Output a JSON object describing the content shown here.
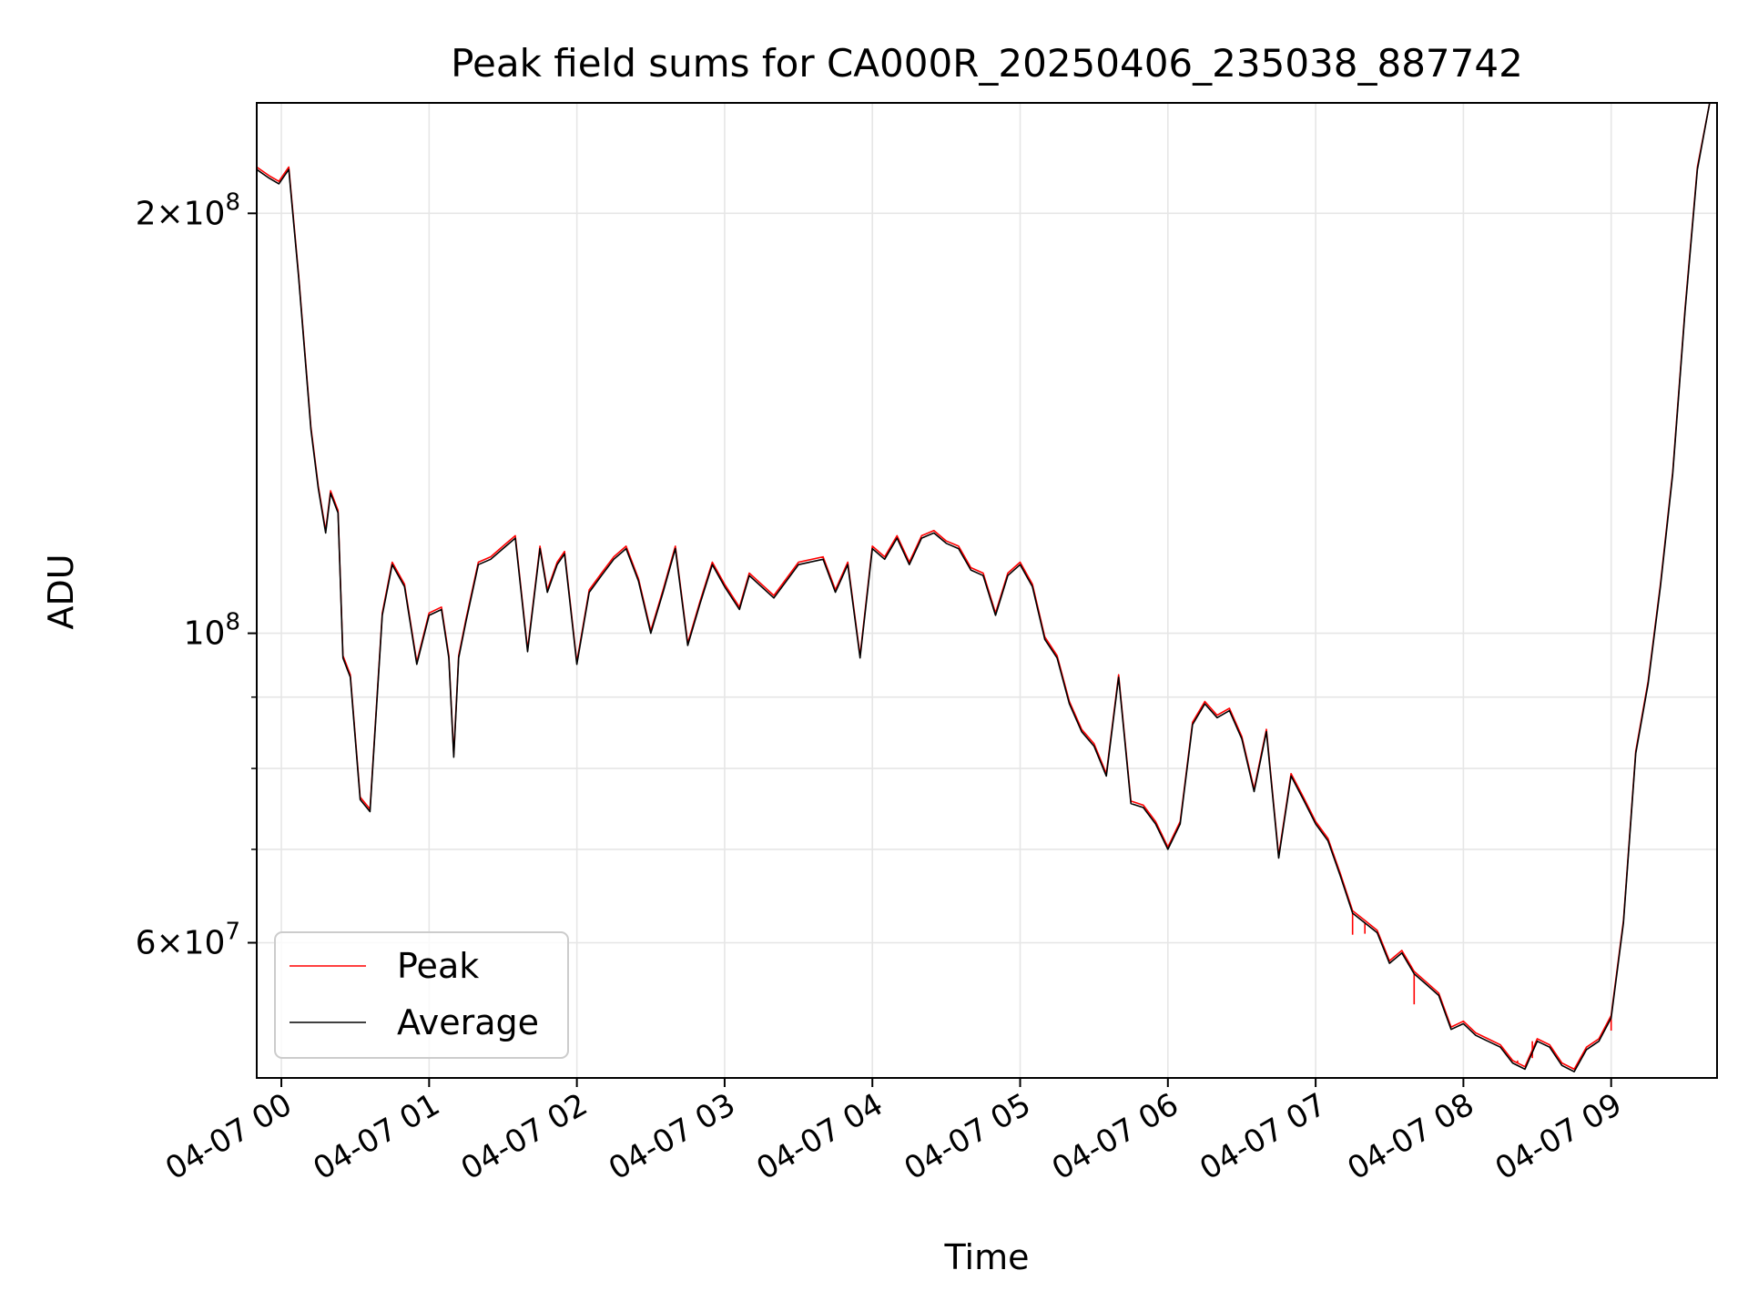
{
  "chart_data": {
    "type": "line",
    "title": "Peak field sums for CA000R_20250406_235038_887742",
    "xlabel": "Time",
    "ylabel": "ADU",
    "yscale": "log",
    "xlim": [
      "2025-04-06 23:50",
      "2025-04-07 09:43"
    ],
    "ylim": [
      48000000,
      240000000
    ],
    "grid": true,
    "legend_position": "lower-left",
    "x_ticks": [
      "04-07 00",
      "04-07 01",
      "04-07 02",
      "04-07 03",
      "04-07 04",
      "04-07 05",
      "04-07 06",
      "04-07 07",
      "04-07 08",
      "04-07 09"
    ],
    "y_tick_labels": [
      {
        "value": 200000000,
        "mantissa": "2",
        "exponent": "8"
      },
      {
        "value": 100000000,
        "mantissa": "",
        "exponent": "8"
      },
      {
        "value": 60000000,
        "mantissa": "6",
        "exponent": "7"
      }
    ],
    "y_minor_ticks": [
      70000000,
      80000000,
      90000000
    ],
    "series": [
      {
        "name": "Peak",
        "color": "#ff0000",
        "ref": "Average",
        "offset_factor": 1.004,
        "spikes": [
          {
            "x": "2025-04-07 07:15",
            "y": 60800000
          },
          {
            "x": "2025-04-07 07:20",
            "y": 60900000
          },
          {
            "x": "2025-04-07 07:40",
            "y": 54200000
          },
          {
            "x": "2025-04-07 08:22",
            "y": 49400000
          },
          {
            "x": "2025-04-07 08:28",
            "y": 49600000
          },
          {
            "x": "2025-04-07 09:00",
            "y": 51900000
          }
        ]
      },
      {
        "name": "Average",
        "color": "#000000",
        "x": [
          "2025-04-06 23:50",
          "2025-04-06 23:55",
          "2025-04-06 23:59",
          "2025-04-07 00:03",
          "2025-04-07 00:07",
          "2025-04-07 00:12",
          "2025-04-07 00:15",
          "2025-04-07 00:18",
          "2025-04-07 00:20",
          "2025-04-07 00:23",
          "2025-04-07 00:25",
          "2025-04-07 00:28",
          "2025-04-07 00:32",
          "2025-04-07 00:36",
          "2025-04-07 00:41",
          "2025-04-07 00:45",
          "2025-04-07 00:50",
          "2025-04-07 00:55",
          "2025-04-07 01:00",
          "2025-04-07 01:05",
          "2025-04-07 01:08",
          "2025-04-07 01:10",
          "2025-04-07 01:12",
          "2025-04-07 01:15",
          "2025-04-07 01:20",
          "2025-04-07 01:25",
          "2025-04-07 01:30",
          "2025-04-07 01:35",
          "2025-04-07 01:40",
          "2025-04-07 01:45",
          "2025-04-07 01:48",
          "2025-04-07 01:52",
          "2025-04-07 01:55",
          "2025-04-07 02:00",
          "2025-04-07 02:05",
          "2025-04-07 02:10",
          "2025-04-07 02:15",
          "2025-04-07 02:20",
          "2025-04-07 02:25",
          "2025-04-07 02:30",
          "2025-04-07 02:35",
          "2025-04-07 02:40",
          "2025-04-07 02:45",
          "2025-04-07 02:50",
          "2025-04-07 02:55",
          "2025-04-07 03:00",
          "2025-04-07 03:06",
          "2025-04-07 03:10",
          "2025-04-07 03:20",
          "2025-04-07 03:30",
          "2025-04-07 03:40",
          "2025-04-07 03:45",
          "2025-04-07 03:50",
          "2025-04-07 03:55",
          "2025-04-07 04:00",
          "2025-04-07 04:05",
          "2025-04-07 04:10",
          "2025-04-07 04:15",
          "2025-04-07 04:20",
          "2025-04-07 04:25",
          "2025-04-07 04:30",
          "2025-04-07 04:35",
          "2025-04-07 04:40",
          "2025-04-07 04:45",
          "2025-04-07 04:50",
          "2025-04-07 04:55",
          "2025-04-07 05:00",
          "2025-04-07 05:05",
          "2025-04-07 05:10",
          "2025-04-07 05:15",
          "2025-04-07 05:20",
          "2025-04-07 05:25",
          "2025-04-07 05:30",
          "2025-04-07 05:35",
          "2025-04-07 05:40",
          "2025-04-07 05:45",
          "2025-04-07 05:50",
          "2025-04-07 05:55",
          "2025-04-07 06:00",
          "2025-04-07 06:05",
          "2025-04-07 06:10",
          "2025-04-07 06:15",
          "2025-04-07 06:20",
          "2025-04-07 06:25",
          "2025-04-07 06:30",
          "2025-04-07 06:35",
          "2025-04-07 06:40",
          "2025-04-07 06:45",
          "2025-04-07 06:50",
          "2025-04-07 06:55",
          "2025-04-07 07:00",
          "2025-04-07 07:05",
          "2025-04-07 07:10",
          "2025-04-07 07:15",
          "2025-04-07 07:20",
          "2025-04-07 07:25",
          "2025-04-07 07:30",
          "2025-04-07 07:35",
          "2025-04-07 07:40",
          "2025-04-07 07:45",
          "2025-04-07 07:50",
          "2025-04-07 07:55",
          "2025-04-07 08:00",
          "2025-04-07 08:05",
          "2025-04-07 08:10",
          "2025-04-07 08:15",
          "2025-04-07 08:20",
          "2025-04-07 08:25",
          "2025-04-07 08:30",
          "2025-04-07 08:35",
          "2025-04-07 08:40",
          "2025-04-07 08:45",
          "2025-04-07 08:50",
          "2025-04-07 08:55",
          "2025-04-07 09:00",
          "2025-04-07 09:05",
          "2025-04-07 09:10",
          "2025-04-07 09:15",
          "2025-04-07 09:20",
          "2025-04-07 09:25",
          "2025-04-07 09:30",
          "2025-04-07 09:35",
          "2025-04-07 09:40",
          "2025-04-07 09:43"
        ],
        "y": [
          215000000,
          212000000,
          210000000,
          215000000,
          180000000,
          140000000,
          127000000,
          118000000,
          126000000,
          122000000,
          96000000,
          93000000,
          76000000,
          74500000,
          103000000,
          112000000,
          108000000,
          95000000,
          103000000,
          104000000,
          96000000,
          81500000,
          96000000,
          102000000,
          112000000,
          113000000,
          115000000,
          117000000,
          97000000,
          115000000,
          107000000,
          112000000,
          114000000,
          95000000,
          107000000,
          110000000,
          113000000,
          115000000,
          109000000,
          100000000,
          107000000,
          115000000,
          98000000,
          105000000,
          112000000,
          108000000,
          104000000,
          110000000,
          106000000,
          112000000,
          113000000,
          107000000,
          112000000,
          96000000,
          115000000,
          113000000,
          117000000,
          112000000,
          117000000,
          118000000,
          116000000,
          115000000,
          111000000,
          110000000,
          103000000,
          110000000,
          112000000,
          108000000,
          99000000,
          96000000,
          89000000,
          85000000,
          83000000,
          79000000,
          93000000,
          75500000,
          75000000,
          73000000,
          70000000,
          73000000,
          86000000,
          89000000,
          87000000,
          88000000,
          84000000,
          77000000,
          85000000,
          69000000,
          79000000,
          76000000,
          73000000,
          71000000,
          67000000,
          63000000,
          62000000,
          61000000,
          58000000,
          59000000,
          57000000,
          56000000,
          55000000,
          52000000,
          52500000,
          51500000,
          51000000,
          50500000,
          49200000,
          48700000,
          51000000,
          50500000,
          49000000,
          48500000,
          50300000,
          51000000,
          53000000,
          62000000,
          82000000,
          92000000,
          108000000,
          130000000,
          170000000,
          215000000,
          240000000,
          240000000
        ]
      }
    ]
  }
}
